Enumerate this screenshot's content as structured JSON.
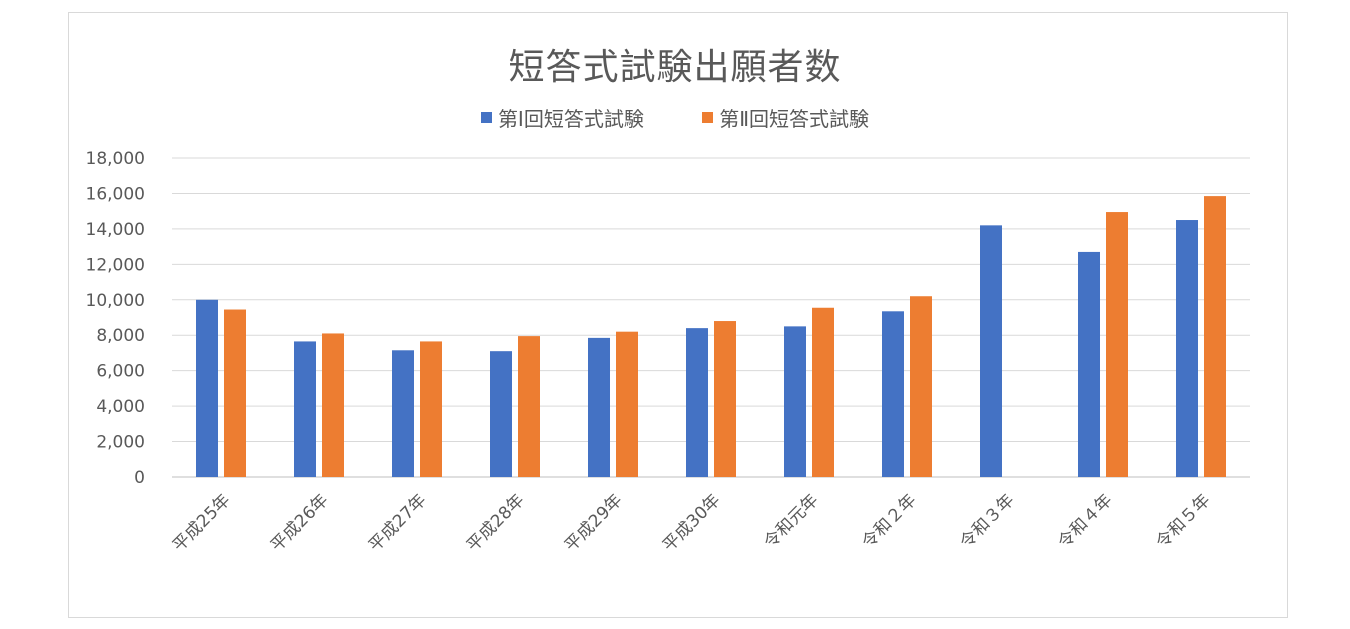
{
  "chart_data": {
    "type": "bar",
    "title": "短答式試験出願者数",
    "categories": [
      "平成25年",
      "平成26年",
      "平成27年",
      "平成28年",
      "平成29年",
      "平成30年",
      "令和元年",
      "令和２年",
      "令和３年",
      "令和４年",
      "令和５年"
    ],
    "series": [
      {
        "name": "第Ⅰ回短答式試験",
        "color": "#4472c4",
        "values": [
          10000,
          7650,
          7150,
          7100,
          7850,
          8400,
          8500,
          9350,
          14200,
          12700,
          14500
        ]
      },
      {
        "name": "第Ⅱ回短答式試験",
        "color": "#ed7d31",
        "values": [
          9450,
          8100,
          7650,
          7950,
          8200,
          8800,
          9550,
          10200,
          null,
          14950,
          15850
        ]
      }
    ],
    "ylim": [
      0,
      18000
    ],
    "yticks": [
      0,
      2000,
      4000,
      6000,
      8000,
      10000,
      12000,
      14000,
      16000,
      18000
    ],
    "ytick_labels": [
      "0",
      "2,000",
      "4,000",
      "6,000",
      "8,000",
      "10,000",
      "12,000",
      "14,000",
      "16,000",
      "18,000"
    ],
    "grid": true,
    "legend_position": "top"
  }
}
